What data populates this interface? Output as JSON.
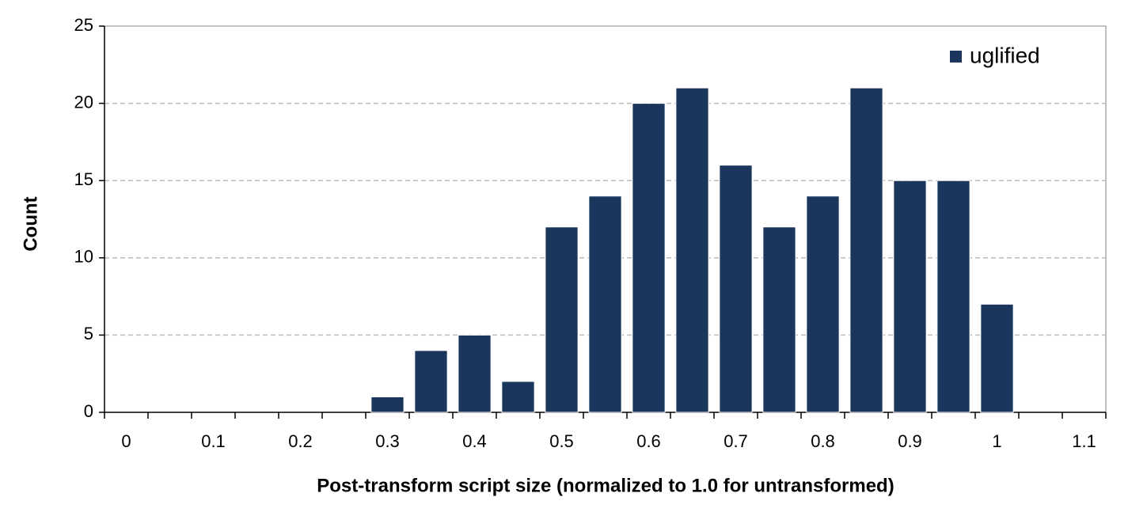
{
  "chart_data": {
    "type": "bar",
    "x_label": "Post-transform script size (normalized to 1.0 for untransformed)",
    "y_label": "Count",
    "categories": [
      "0",
      null,
      "0.1",
      null,
      "0.2",
      null,
      "0.3",
      null,
      "0.4",
      null,
      "0.5",
      null,
      "0.6",
      null,
      "0.7",
      null,
      "0.8",
      null,
      "0.9",
      null,
      "1",
      null,
      "1.1"
    ],
    "series": [
      {
        "name": "uglified",
        "color": "#1b365d",
        "values": [
          0,
          0,
          0,
          0,
          0,
          0,
          1,
          4,
          5,
          2,
          12,
          14,
          20,
          21,
          16,
          12,
          14,
          21,
          15,
          15,
          7,
          0,
          0
        ]
      }
    ],
    "ylim": [
      0,
      25
    ],
    "yticks": [
      0,
      5,
      10,
      15,
      20,
      25
    ],
    "grid": true,
    "legend": "top-right"
  }
}
